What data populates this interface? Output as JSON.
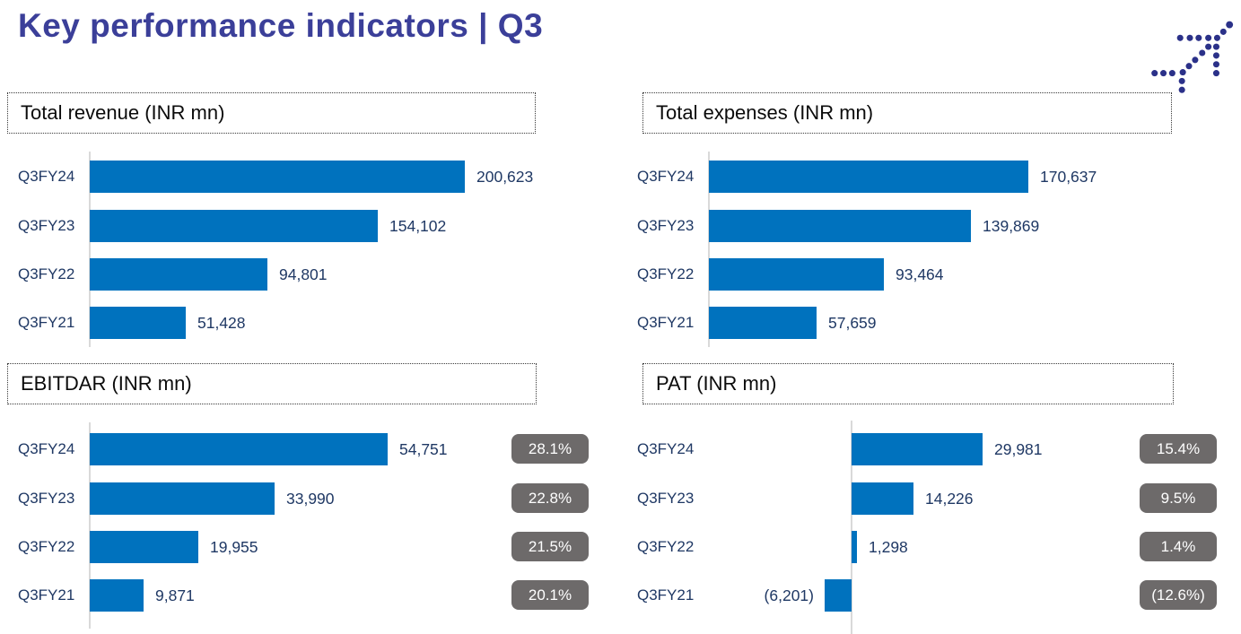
{
  "header": {
    "title": "Key performance indicators | Q3"
  },
  "logo": {
    "icon": "indigo-dotted-plane",
    "color": "#2B3189"
  },
  "colors": {
    "bar_blue": "#0072BE",
    "label_navy": "#1F3864",
    "title_indigo": "#3B3F99",
    "badge_gray": "#6D6A6A",
    "axis_gray": "#D9D9D9",
    "panel_title_black": "#0b0b0b"
  },
  "chart_data": [
    {
      "type": "bar",
      "orientation": "horizontal",
      "title": "Total revenue (INR mn)",
      "categories": [
        "Q3FY24",
        "Q3FY23",
        "Q3FY22",
        "Q3FY21"
      ],
      "values": [
        200623,
        154102,
        94801,
        51428
      ],
      "value_labels": [
        "200,623",
        "154,102",
        "94,801",
        "51,428"
      ],
      "xlim": [
        0,
        210000
      ],
      "grid": false,
      "legend": "none"
    },
    {
      "type": "bar",
      "orientation": "horizontal",
      "title": "Total expenses (INR mn)",
      "categories": [
        "Q3FY24",
        "Q3FY23",
        "Q3FY22",
        "Q3FY21"
      ],
      "values": [
        170637,
        139869,
        93464,
        57659
      ],
      "value_labels": [
        "170,637",
        "139,869",
        "93,464",
        "57,659"
      ],
      "xlim": [
        0,
        180000
      ],
      "grid": false,
      "legend": "none"
    },
    {
      "type": "bar",
      "orientation": "horizontal",
      "title": "EBITDAR (INR mn)",
      "categories": [
        "Q3FY24",
        "Q3FY23",
        "Q3FY22",
        "Q3FY21"
      ],
      "values": [
        54751,
        33990,
        19955,
        9871
      ],
      "value_labels": [
        "54,751",
        "33,990",
        "19,955",
        "9,871"
      ],
      "badges": [
        "28.1%",
        "22.8%",
        "21.5%",
        "20.1%"
      ],
      "badges_meaning": "margin percent",
      "xlim": [
        0,
        58000
      ],
      "grid": false,
      "legend": "none"
    },
    {
      "type": "bar",
      "orientation": "horizontal",
      "title": "PAT (INR mn)",
      "categories": [
        "Q3FY24",
        "Q3FY23",
        "Q3FY22",
        "Q3FY21"
      ],
      "values": [
        29981,
        14226,
        1298,
        -6201
      ],
      "value_labels": [
        "29,981",
        "14,226",
        "1,298",
        "(6,201)"
      ],
      "badges": [
        "15.4%",
        "9.5%",
        "1.4%",
        "(12.6%)"
      ],
      "badges_meaning": "margin percent",
      "xlim": [
        -8000,
        32000
      ],
      "grid": false,
      "legend": "none"
    }
  ]
}
